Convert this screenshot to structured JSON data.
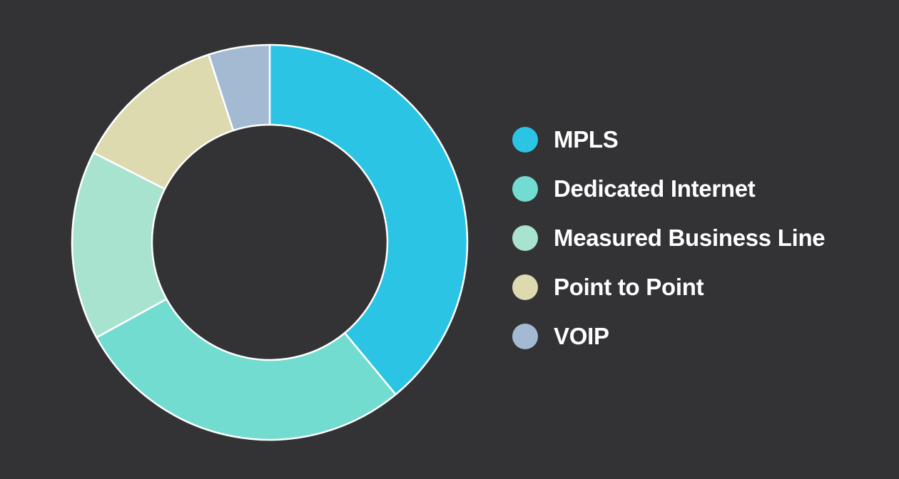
{
  "chart_data": {
    "type": "pie",
    "subtype": "donut",
    "title": "",
    "categories": [
      "MPLS",
      "Dedicated Internet",
      "Measured Business Line",
      "Point to Point",
      "VOIP"
    ],
    "values": [
      39,
      28,
      15.5,
      12.5,
      5
    ],
    "unit": "percent (estimated share)",
    "colors": [
      "#2BC4E4",
      "#72DCD1",
      "#A8E3CF",
      "#DDDAB0",
      "#A4BAD2"
    ],
    "start_angle_deg": 0,
    "direction": "clockwise",
    "legend_position": "right"
  },
  "legend": {
    "items": [
      {
        "label": "MPLS",
        "color": "#2BC4E4"
      },
      {
        "label": "Dedicated Internet",
        "color": "#72DCD1"
      },
      {
        "label": "Measured Business Line",
        "color": "#A8E3CF"
      },
      {
        "label": "Point to Point",
        "color": "#DDDAB0"
      },
      {
        "label": "VOIP",
        "color": "#A4BAD2"
      }
    ]
  },
  "style": {
    "background": "#333335",
    "slice_border": "#FFFFFF"
  }
}
